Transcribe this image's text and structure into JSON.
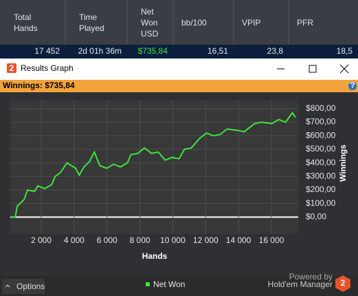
{
  "table": {
    "headers": [
      "Total\nHands",
      "Time\nPlayed",
      "Net\nWon\nUSD",
      "bb/100",
      "VPIP",
      "PFR"
    ],
    "row": [
      "17 452",
      "2d 01h 36m",
      "$735,84",
      "16,51",
      "23,8",
      "18,5"
    ]
  },
  "window": {
    "icon": "2",
    "title": "Results Graph",
    "summary": "Winnings: $735,84",
    "help": "?"
  },
  "chart_data": {
    "type": "line",
    "x_label": "Hands",
    "y_label": "Winnings",
    "x": [
      150,
      420,
      540,
      960,
      1170,
      1590,
      1800,
      2220,
      2640,
      2850,
      3180,
      3560,
      4100,
      4310,
      4600,
      4940,
      5230,
      5560,
      5980,
      6400,
      6820,
      7240,
      7450,
      7870,
      8280,
      8700,
      9120,
      9540,
      9960,
      10380,
      10710,
      11130,
      11630,
      12050,
      12470,
      12890,
      13300,
      13930,
      14350,
      14980,
      15400,
      16030,
      16440,
      16860,
      17280,
      17452
    ],
    "series": [
      {
        "name": "Net Won",
        "color": "#3ee43e",
        "values": [
          0,
          0,
          80,
          130,
          200,
          190,
          230,
          210,
          240,
          300,
          330,
          400,
          360,
          310,
          370,
          410,
          480,
          380,
          360,
          390,
          370,
          400,
          460,
          470,
          510,
          470,
          480,
          420,
          440,
          430,
          500,
          510,
          580,
          620,
          600,
          610,
          650,
          640,
          630,
          690,
          700,
          690,
          720,
          700,
          770,
          736
        ]
      }
    ],
    "xlim": [
      120,
      17630
    ],
    "ylim": [
      -125,
      860
    ],
    "xticks": [
      {
        "value": 2000,
        "label": "2 000"
      },
      {
        "value": 4000,
        "label": "4 000"
      },
      {
        "value": 6000,
        "label": "6 000"
      },
      {
        "value": 8000,
        "label": "8 000"
      },
      {
        "value": 10000,
        "label": "10 000"
      },
      {
        "value": 12000,
        "label": "12 000"
      },
      {
        "value": 14000,
        "label": "14 000"
      },
      {
        "value": 16000,
        "label": "16 000"
      }
    ],
    "yticks": [
      {
        "value": 0,
        "label": "$0,00"
      },
      {
        "value": 100,
        "label": "$100,00"
      },
      {
        "value": 200,
        "label": "$200,00"
      },
      {
        "value": 300,
        "label": "$300,00"
      },
      {
        "value": 400,
        "label": "$400,00"
      },
      {
        "value": 500,
        "label": "$500,00"
      },
      {
        "value": 600,
        "label": "$600,00"
      },
      {
        "value": 700,
        "label": "$700,00"
      },
      {
        "value": 800,
        "label": "$800,00"
      }
    ],
    "grid": true
  },
  "footer": {
    "options": "Options",
    "powered": "Powered by",
    "brand": "Hold'em Manager",
    "logo": "2"
  }
}
